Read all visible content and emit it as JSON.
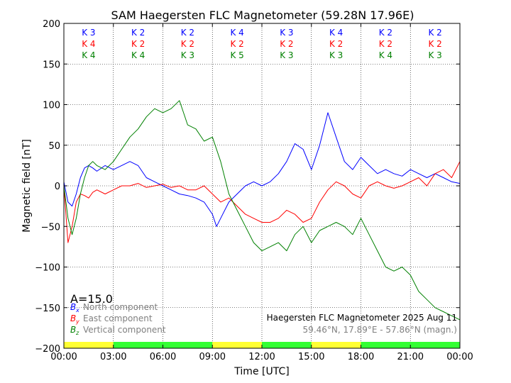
{
  "chart_data": {
    "type": "line",
    "title": "SAM Haegersten FLC Magnetometer (59.28N 17.96E)",
    "xlabel": "Time [UTC]",
    "ylabel": "Magnetic field [nT]",
    "xlim": [
      0,
      24
    ],
    "ylim": [
      -200,
      200
    ],
    "xticks": [
      0,
      3,
      6,
      9,
      12,
      15,
      18,
      21,
      24
    ],
    "xtick_labels": [
      "00:00",
      "03:00",
      "06:00",
      "09:00",
      "12:00",
      "15:00",
      "18:00",
      "21:00",
      "00:00"
    ],
    "yticks": [
      -200,
      -150,
      -100,
      -50,
      0,
      50,
      100,
      150,
      200
    ],
    "ytick_labels": [
      "−200",
      "−150",
      "−100",
      "−50",
      "0",
      "50",
      "100",
      "150",
      "200"
    ],
    "grid": true,
    "a_index": "A=15.0",
    "station_label": "Haegersten FLC Magnetometer 2025 Aug 11",
    "coords_label": "59.46°N, 17.89°E - 57.86°N (magn.)",
    "k_indices": {
      "north": [
        "K 3",
        "K 2",
        "K 2",
        "K 4",
        "K 3",
        "K 4",
        "K 2",
        "K 2"
      ],
      "east": [
        "K 4",
        "K 2",
        "K 2",
        "K 2",
        "K 2",
        "K 2",
        "K 2",
        "K 2"
      ],
      "vertical": [
        "K 4",
        "K 4",
        "K 3",
        "K 5",
        "K 3",
        "K 3",
        "K 4",
        "K 3"
      ]
    },
    "activity_bar": [
      "yellow",
      "green",
      "green",
      "yellow",
      "green",
      "yellow",
      "green",
      "green"
    ],
    "series": [
      {
        "name": "North component",
        "symbol": "B",
        "subscript": "x",
        "color": "#0000ff",
        "x": [
          0,
          0.25,
          0.5,
          0.75,
          1.0,
          1.25,
          1.5,
          1.75,
          2.0,
          2.5,
          3.0,
          3.5,
          4.0,
          4.5,
          5.0,
          5.5,
          6.0,
          6.5,
          7.0,
          7.5,
          8.0,
          8.5,
          9.0,
          9.25,
          9.5,
          10.0,
          10.5,
          11.0,
          11.5,
          12.0,
          12.5,
          13.0,
          13.5,
          14.0,
          14.5,
          15.0,
          15.5,
          16.0,
          16.5,
          17.0,
          17.5,
          18.0,
          18.5,
          19.0,
          19.5,
          20.0,
          20.5,
          21.0,
          21.5,
          22.0,
          22.5,
          23.0,
          23.5,
          24.0
        ],
        "y": [
          5,
          -20,
          -25,
          -10,
          10,
          22,
          25,
          22,
          18,
          25,
          20,
          25,
          30,
          25,
          10,
          5,
          0,
          -5,
          -10,
          -12,
          -15,
          -20,
          -35,
          -50,
          -40,
          -20,
          -10,
          0,
          5,
          0,
          5,
          15,
          30,
          52,
          45,
          20,
          50,
          90,
          60,
          30,
          20,
          35,
          25,
          15,
          20,
          15,
          12,
          20,
          15,
          10,
          15,
          10,
          5,
          3
        ]
      },
      {
        "name": "East component",
        "symbol": "B",
        "subscript": "y",
        "color": "#ff0000",
        "x": [
          0,
          0.25,
          0.5,
          0.75,
          1.0,
          1.25,
          1.5,
          1.75,
          2.0,
          2.5,
          3.0,
          3.5,
          4.0,
          4.5,
          5.0,
          5.5,
          6.0,
          6.5,
          7.0,
          7.5,
          8.0,
          8.5,
          9.0,
          9.5,
          10.0,
          10.5,
          11.0,
          11.5,
          12.0,
          12.5,
          13.0,
          13.5,
          14.0,
          14.5,
          15.0,
          15.5,
          16.0,
          16.5,
          17.0,
          17.5,
          18.0,
          18.5,
          19.0,
          19.5,
          20.0,
          20.5,
          21.0,
          21.5,
          22.0,
          22.5,
          23.0,
          23.5,
          24.0
        ],
        "y": [
          0,
          -70,
          -50,
          -20,
          -10,
          -12,
          -15,
          -8,
          -5,
          -10,
          -5,
          0,
          0,
          3,
          -2,
          0,
          2,
          -2,
          0,
          -5,
          -5,
          0,
          -10,
          -20,
          -15,
          -25,
          -35,
          -40,
          -45,
          -45,
          -40,
          -30,
          -35,
          -45,
          -40,
          -20,
          -5,
          5,
          0,
          -10,
          -15,
          0,
          5,
          0,
          -3,
          0,
          5,
          10,
          0,
          15,
          20,
          10,
          30
        ]
      },
      {
        "name": "Vertical component",
        "symbol": "B",
        "subscript": "z",
        "color": "#008000",
        "x": [
          0,
          0.25,
          0.5,
          0.75,
          1.0,
          1.25,
          1.5,
          1.75,
          2.0,
          2.5,
          3.0,
          3.5,
          4.0,
          4.5,
          5.0,
          5.5,
          6.0,
          6.5,
          7.0,
          7.25,
          7.5,
          8.0,
          8.5,
          9.0,
          9.5,
          10.0,
          10.5,
          11.0,
          11.5,
          12.0,
          12.5,
          13.0,
          13.5,
          14.0,
          14.5,
          15.0,
          15.5,
          16.0,
          16.5,
          17.0,
          17.5,
          18.0,
          18.5,
          19.0,
          19.5,
          20.0,
          20.5,
          21.0,
          21.5,
          22.0,
          22.5,
          23.0,
          23.5,
          24.0
        ],
        "y": [
          0,
          -40,
          -60,
          -40,
          -10,
          10,
          25,
          30,
          25,
          20,
          30,
          45,
          60,
          70,
          85,
          95,
          90,
          95,
          105,
          90,
          75,
          70,
          55,
          60,
          30,
          -10,
          -30,
          -50,
          -70,
          -80,
          -75,
          -70,
          -80,
          -60,
          -50,
          -70,
          -55,
          -50,
          -45,
          -50,
          -60,
          -40,
          -60,
          -80,
          -100,
          -105,
          -100,
          -110,
          -130,
          -140,
          -150,
          -155,
          -160,
          -165
        ]
      }
    ]
  }
}
